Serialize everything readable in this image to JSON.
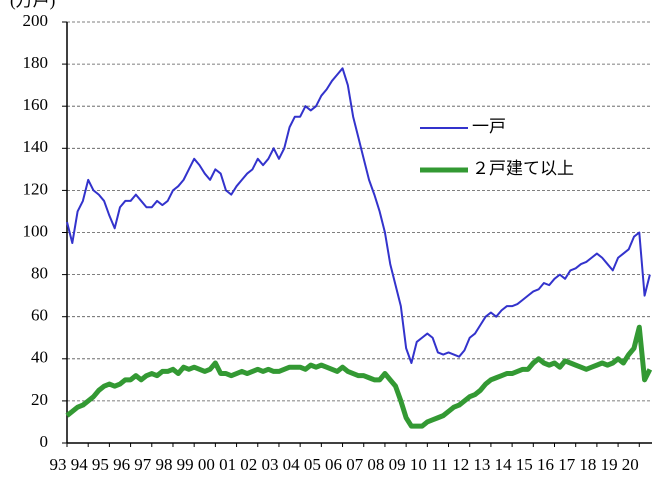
{
  "chart_data": {
    "type": "line",
    "y_label": "(万戸)",
    "xlim": [
      1993,
      2020.6
    ],
    "ylim": [
      0,
      200
    ],
    "yticks": [
      0,
      20,
      40,
      60,
      80,
      100,
      120,
      140,
      160,
      180,
      200
    ],
    "xticks": [
      {
        "value": 1993,
        "label": "93"
      },
      {
        "value": 1994,
        "label": "94"
      },
      {
        "value": 1995,
        "label": "95"
      },
      {
        "value": 1996,
        "label": "96"
      },
      {
        "value": 1997,
        "label": "97"
      },
      {
        "value": 1998,
        "label": "98"
      },
      {
        "value": 1999,
        "label": "99"
      },
      {
        "value": 2000,
        "label": "00"
      },
      {
        "value": 2001,
        "label": "01"
      },
      {
        "value": 2002,
        "label": "02"
      },
      {
        "value": 2003,
        "label": "03"
      },
      {
        "value": 2004,
        "label": "04"
      },
      {
        "value": 2005,
        "label": "05"
      },
      {
        "value": 2006,
        "label": "06"
      },
      {
        "value": 2007,
        "label": "07"
      },
      {
        "value": 2008,
        "label": "08"
      },
      {
        "value": 2009,
        "label": "09"
      },
      {
        "value": 2010,
        "label": "10"
      },
      {
        "value": 2011,
        "label": "11"
      },
      {
        "value": 2012,
        "label": "12"
      },
      {
        "value": 2013,
        "label": "13"
      },
      {
        "value": 2014,
        "label": "14"
      },
      {
        "value": 2015,
        "label": "15"
      },
      {
        "value": 2016,
        "label": "16"
      },
      {
        "value": 2017,
        "label": "17"
      },
      {
        "value": 2018,
        "label": "18"
      },
      {
        "value": 2019,
        "label": "19"
      },
      {
        "value": 2020,
        "label": "20"
      }
    ],
    "grid": true,
    "x": [
      1993,
      1993.25,
      1993.5,
      1993.75,
      1994,
      1994.25,
      1994.5,
      1994.75,
      1995,
      1995.25,
      1995.5,
      1995.75,
      1996,
      1996.25,
      1996.5,
      1996.75,
      1997,
      1997.25,
      1997.5,
      1997.75,
      1998,
      1998.25,
      1998.5,
      1998.75,
      1999,
      1999.25,
      1999.5,
      1999.75,
      2000,
      2000.25,
      2000.5,
      2000.75,
      2001,
      2001.25,
      2001.5,
      2001.75,
      2002,
      2002.25,
      2002.5,
      2002.75,
      2003,
      2003.25,
      2003.5,
      2003.75,
      2004,
      2004.25,
      2004.5,
      2004.75,
      2005,
      2005.25,
      2005.5,
      2005.75,
      2006,
      2006.25,
      2006.5,
      2006.75,
      2007,
      2007.25,
      2007.5,
      2007.75,
      2008,
      2008.25,
      2008.5,
      2008.75,
      2009,
      2009.25,
      2009.5,
      2009.75,
      2010,
      2010.25,
      2010.5,
      2010.75,
      2011,
      2011.25,
      2011.5,
      2011.75,
      2012,
      2012.25,
      2012.5,
      2012.75,
      2013,
      2013.25,
      2013.5,
      2013.75,
      2014,
      2014.25,
      2014.5,
      2014.75,
      2015,
      2015.25,
      2015.5,
      2015.75,
      2016,
      2016.25,
      2016.5,
      2016.75,
      2017,
      2017.25,
      2017.5,
      2017.75,
      2018,
      2018.25,
      2018.5,
      2018.75,
      2019,
      2019.25,
      2019.5,
      2019.75,
      2020,
      2020.25,
      2020.5
    ],
    "series": [
      {
        "name": "一戸",
        "color": "#3333cc",
        "width": 2,
        "values": [
          105,
          95,
          110,
          115,
          125,
          120,
          118,
          115,
          108,
          102,
          112,
          115,
          115,
          118,
          115,
          112,
          112,
          115,
          113,
          115,
          120,
          122,
          125,
          130,
          135,
          132,
          128,
          125,
          130,
          128,
          120,
          118,
          122,
          125,
          128,
          130,
          135,
          132,
          135,
          140,
          135,
          140,
          150,
          155,
          155,
          160,
          158,
          160,
          165,
          168,
          172,
          175,
          178,
          170,
          155,
          145,
          135,
          125,
          118,
          110,
          100,
          85,
          75,
          65,
          45,
          38,
          48,
          50,
          52,
          50,
          43,
          42,
          43,
          42,
          41,
          44,
          50,
          52,
          56,
          60,
          62,
          60,
          63,
          65,
          65,
          66,
          68,
          70,
          72,
          73,
          76,
          75,
          78,
          80,
          78,
          82,
          83,
          85,
          86,
          88,
          90,
          88,
          85,
          82,
          88,
          90,
          92,
          98,
          100,
          70,
          80
        ]
      },
      {
        "name": "２戸建て以上",
        "color": "#339933",
        "width": 5,
        "values": [
          13,
          15,
          17,
          18,
          20,
          22,
          25,
          27,
          28,
          27,
          28,
          30,
          30,
          32,
          30,
          32,
          33,
          32,
          34,
          34,
          35,
          33,
          36,
          35,
          36,
          35,
          34,
          35,
          38,
          33,
          33,
          32,
          33,
          34,
          33,
          34,
          35,
          34,
          35,
          34,
          34,
          35,
          36,
          36,
          36,
          35,
          37,
          36,
          37,
          36,
          35,
          34,
          36,
          34,
          33,
          32,
          32,
          31,
          30,
          30,
          33,
          30,
          27,
          20,
          12,
          8,
          8,
          8,
          10,
          11,
          12,
          13,
          15,
          17,
          18,
          20,
          22,
          23,
          25,
          28,
          30,
          31,
          32,
          33,
          33,
          34,
          35,
          35,
          38,
          40,
          38,
          37,
          38,
          36,
          39,
          38,
          37,
          36,
          35,
          36,
          37,
          38,
          37,
          38,
          40,
          38,
          42,
          45,
          55,
          30,
          35
        ]
      }
    ]
  }
}
